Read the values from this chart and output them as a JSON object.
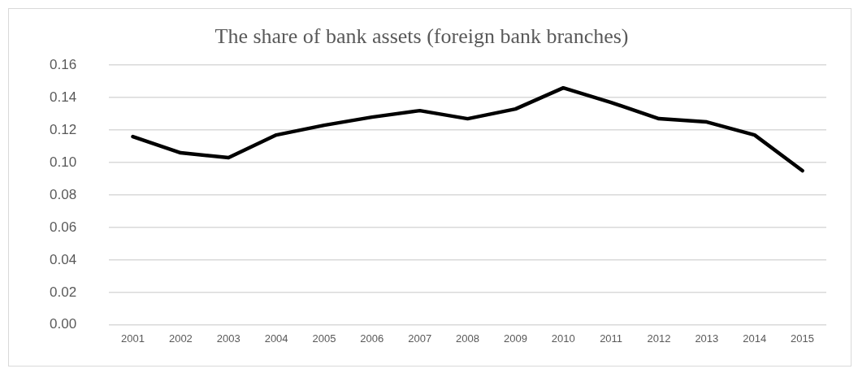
{
  "chart_data": {
    "type": "line",
    "title": "The share of bank assets (foreign bank branches)",
    "categories": [
      "2001",
      "2002",
      "2003",
      "2004",
      "2005",
      "2006",
      "2007",
      "2008",
      "2009",
      "2010",
      "2011",
      "2012",
      "2013",
      "2014",
      "2015"
    ],
    "series": [
      {
        "color": "#000000",
        "values": [
          0.116,
          0.106,
          0.103,
          0.117,
          0.123,
          0.128,
          0.132,
          0.127,
          0.133,
          0.146,
          0.137,
          0.127,
          0.125,
          0.117,
          0.095
        ]
      }
    ],
    "ylim": [
      0,
      0.16
    ],
    "yticks": [
      {
        "value": 0,
        "label": "0.00"
      },
      {
        "value": 0.02,
        "label": "0.02"
      },
      {
        "value": 0.04,
        "label": "0.04"
      },
      {
        "value": 0.06,
        "label": "0.06"
      },
      {
        "value": 0.08,
        "label": "0.08"
      },
      {
        "value": 0.1,
        "label": "0.10"
      },
      {
        "value": 0.12,
        "label": "0.12"
      },
      {
        "value": 0.14,
        "label": "0.14"
      },
      {
        "value": 0.16,
        "label": "0.16"
      }
    ],
    "grid": "y",
    "legend": false,
    "marker": "none",
    "line_style": "solid"
  }
}
